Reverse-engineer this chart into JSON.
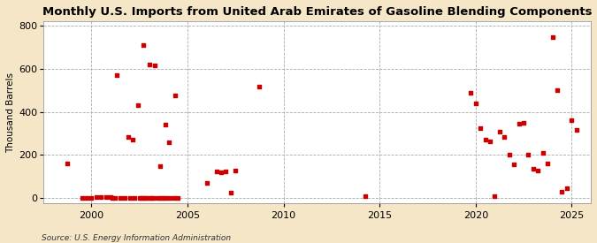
{
  "title": "Monthly U.S. Imports from United Arab Emirates of Gasoline Blending Components",
  "ylabel": "Thousand Barrels",
  "source": "Source: U.S. Energy Information Administration",
  "background_color": "#f5e6c8",
  "plot_bg_color": "#ffffff",
  "marker_color": "#cc0000",
  "xlim": [
    1997.5,
    2026.0
  ],
  "ylim": [
    -25,
    820
  ],
  "yticks": [
    0,
    200,
    400,
    600,
    800
  ],
  "xticks": [
    2000,
    2005,
    2010,
    2015,
    2020,
    2025
  ],
  "title_fontsize": 9.5,
  "data_points": [
    [
      1998.75,
      160
    ],
    [
      1999.5,
      2
    ],
    [
      1999.75,
      2
    ],
    [
      2000.0,
      2
    ],
    [
      2000.25,
      5
    ],
    [
      2000.5,
      4
    ],
    [
      2000.75,
      4
    ],
    [
      2001.0,
      4
    ],
    [
      2001.1,
      2
    ],
    [
      2001.2,
      2
    ],
    [
      2001.5,
      3
    ],
    [
      2001.75,
      3
    ],
    [
      2002.0,
      3
    ],
    [
      2002.25,
      3
    ],
    [
      2002.5,
      3
    ],
    [
      2002.6,
      3
    ],
    [
      2002.75,
      3
    ],
    [
      2002.85,
      3
    ],
    [
      2003.0,
      3
    ],
    [
      2003.1,
      3
    ],
    [
      2003.25,
      3
    ],
    [
      2003.5,
      3
    ],
    [
      2003.6,
      3
    ],
    [
      2003.75,
      3
    ],
    [
      2003.9,
      3
    ],
    [
      2004.1,
      3
    ],
    [
      2004.3,
      3
    ],
    [
      2004.5,
      3
    ],
    [
      2001.3,
      570
    ],
    [
      2001.9,
      285
    ],
    [
      2002.15,
      270
    ],
    [
      2002.4,
      432
    ],
    [
      2002.7,
      710
    ],
    [
      2003.0,
      620
    ],
    [
      2003.3,
      615
    ],
    [
      2003.55,
      150
    ],
    [
      2003.85,
      340
    ],
    [
      2004.05,
      260
    ],
    [
      2004.35,
      475
    ],
    [
      2006.0,
      70
    ],
    [
      2006.5,
      125
    ],
    [
      2006.75,
      120
    ],
    [
      2007.0,
      125
    ],
    [
      2007.25,
      25
    ],
    [
      2007.5,
      130
    ],
    [
      2008.75,
      515
    ],
    [
      2014.25,
      10
    ],
    [
      2019.75,
      490
    ],
    [
      2020.0,
      440
    ],
    [
      2020.25,
      325
    ],
    [
      2020.5,
      270
    ],
    [
      2020.75,
      265
    ],
    [
      2021.0,
      10
    ],
    [
      2021.25,
      310
    ],
    [
      2021.5,
      285
    ],
    [
      2021.75,
      200
    ],
    [
      2022.0,
      155
    ],
    [
      2022.25,
      345
    ],
    [
      2022.5,
      350
    ],
    [
      2022.75,
      200
    ],
    [
      2023.0,
      135
    ],
    [
      2023.25,
      130
    ],
    [
      2023.5,
      210
    ],
    [
      2023.75,
      160
    ],
    [
      2024.0,
      745
    ],
    [
      2024.25,
      500
    ],
    [
      2024.5,
      30
    ],
    [
      2024.75,
      45
    ],
    [
      2025.0,
      360
    ],
    [
      2025.25,
      315
    ]
  ]
}
